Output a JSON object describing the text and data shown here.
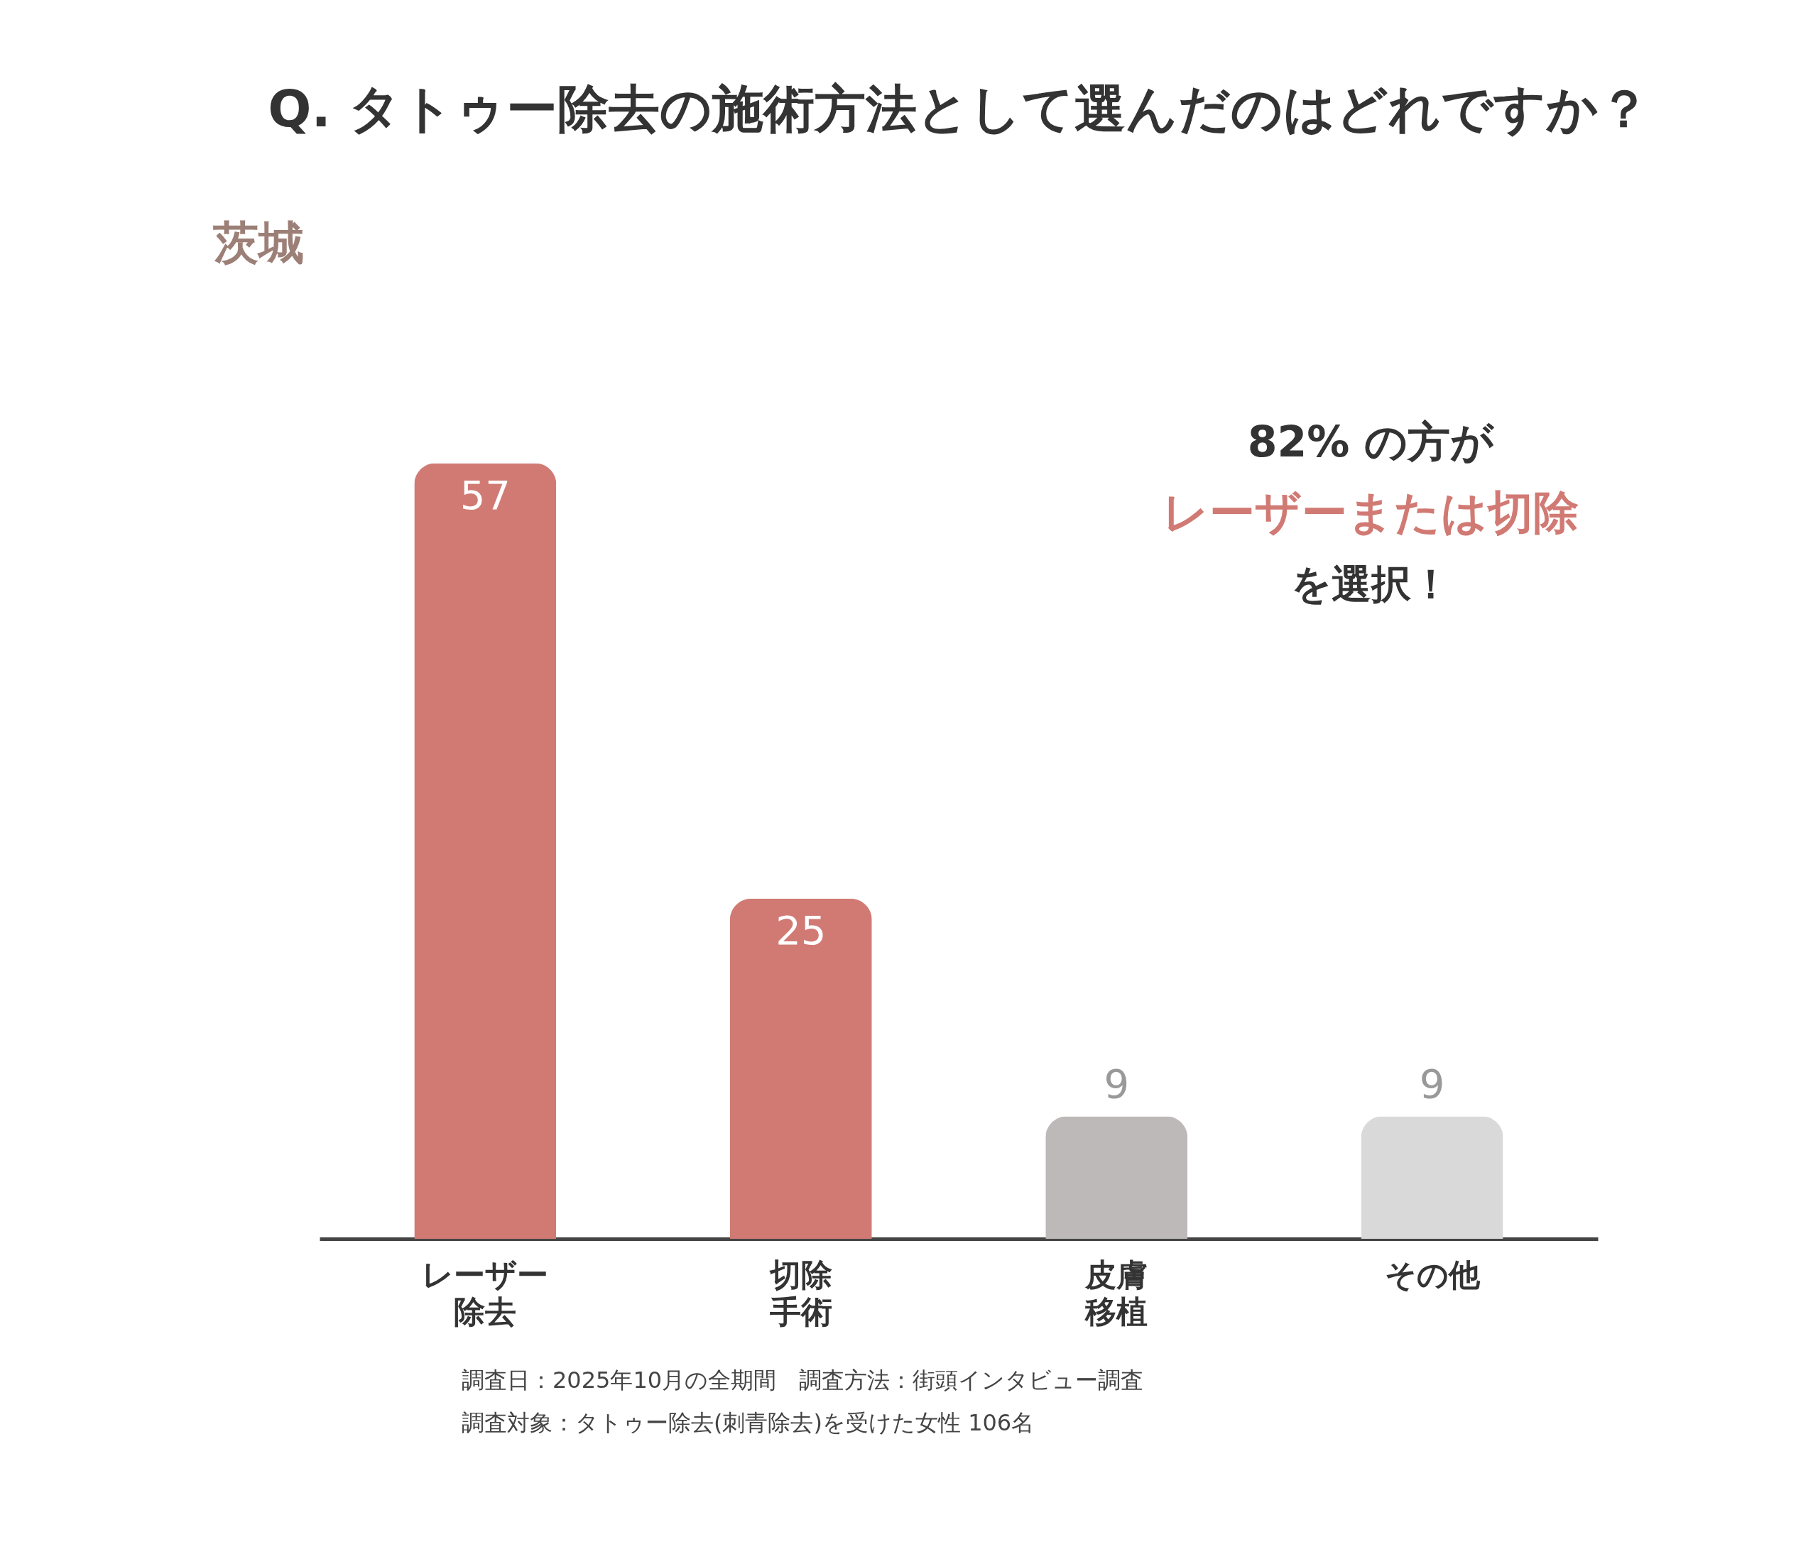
{
  "chart_data": {
    "type": "bar",
    "title": "Q. タトゥー除去の施術方法として選んだのはどれですか？",
    "categories": [
      "レーザー除去",
      "切除手術",
      "皮膚移植",
      "その他"
    ],
    "values": [
      57,
      25,
      9,
      9
    ],
    "colors": [
      "#d17a74",
      "#d17a74",
      "#bdb9b8",
      "#d9d9d9"
    ],
    "data_labels": true,
    "annotations": [
      "茨城",
      "82% の方が",
      "レーザーまたは切除",
      "を選択！",
      "調査日：2025年10月の全期間　調査方法：街頭インタビュー調査",
      "調査対象：タトゥー除去(刺青除去)を受けた女性 106名"
    ]
  }
}
